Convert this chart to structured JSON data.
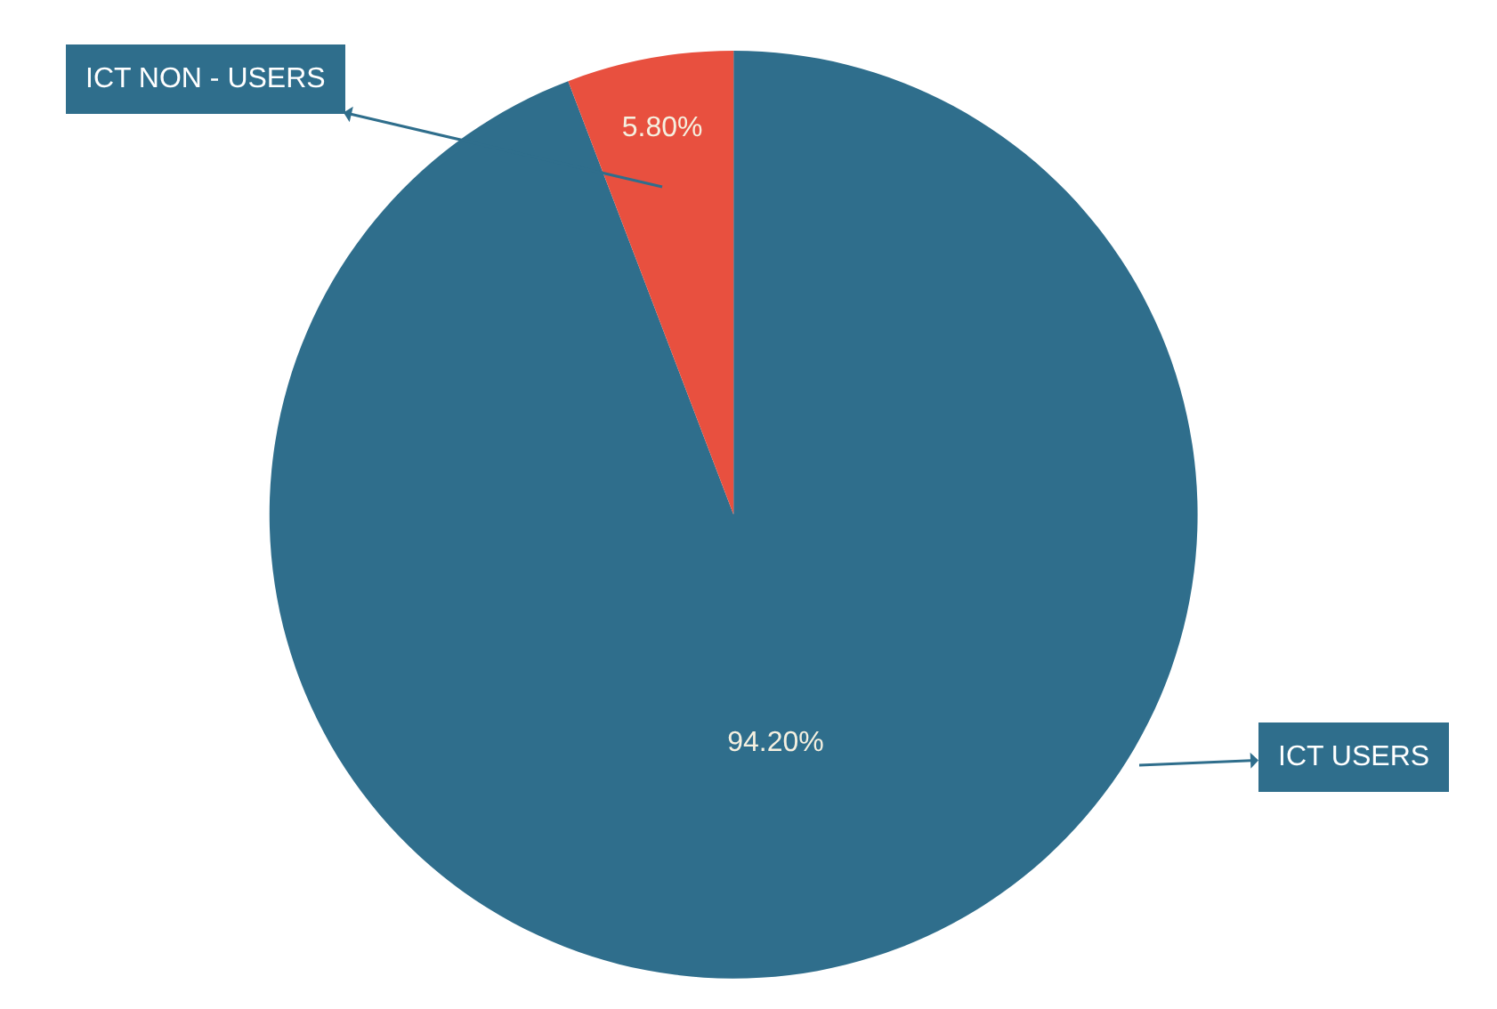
{
  "chart_data": {
    "type": "pie",
    "categories": [
      "ICT USERS",
      "ICT NON - USERS"
    ],
    "values": [
      94.2,
      5.8
    ],
    "colors": [
      "#2f6e8c",
      "#e8503f"
    ],
    "value_labels": [
      "94.20%",
      "5.80%"
    ]
  }
}
